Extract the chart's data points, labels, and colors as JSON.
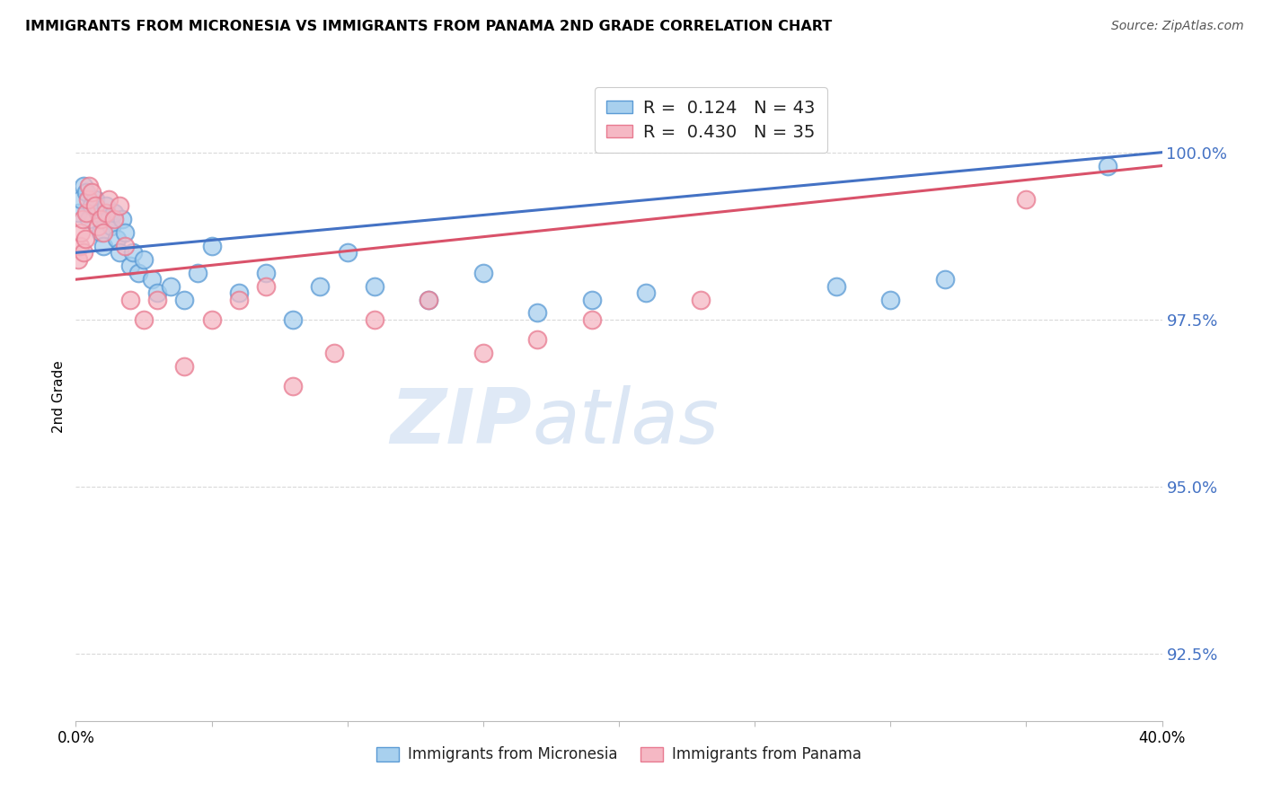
{
  "title": "IMMIGRANTS FROM MICRONESIA VS IMMIGRANTS FROM PANAMA 2ND GRADE CORRELATION CHART",
  "source": "Source: ZipAtlas.com",
  "ylabel": "2nd Grade",
  "y_ticks": [
    92.5,
    95.0,
    97.5,
    100.0
  ],
  "y_tick_labels": [
    "92.5%",
    "95.0%",
    "97.5%",
    "100.0%"
  ],
  "x_lim": [
    0.0,
    40.0
  ],
  "y_lim": [
    91.5,
    101.2
  ],
  "micronesia_x": [
    0.1,
    0.2,
    0.3,
    0.4,
    0.5,
    0.6,
    0.7,
    0.8,
    0.9,
    1.0,
    1.1,
    1.2,
    1.3,
    1.4,
    1.5,
    1.6,
    1.7,
    1.8,
    2.0,
    2.1,
    2.3,
    2.5,
    2.8,
    3.0,
    3.5,
    4.0,
    4.5,
    5.0,
    6.0,
    7.0,
    8.0,
    9.0,
    10.0,
    11.0,
    13.0,
    15.0,
    17.0,
    19.0,
    21.0,
    28.0,
    30.0,
    32.0,
    38.0
  ],
  "micronesia_y": [
    99.1,
    99.3,
    99.5,
    99.4,
    99.0,
    99.2,
    99.3,
    99.1,
    98.8,
    98.6,
    99.2,
    99.0,
    98.9,
    99.1,
    98.7,
    98.5,
    99.0,
    98.8,
    98.3,
    98.5,
    98.2,
    98.4,
    98.1,
    97.9,
    98.0,
    97.8,
    98.2,
    98.6,
    97.9,
    98.2,
    97.5,
    98.0,
    98.5,
    98.0,
    97.8,
    98.2,
    97.6,
    97.8,
    97.9,
    98.0,
    97.8,
    98.1,
    99.8
  ],
  "panama_x": [
    0.1,
    0.15,
    0.2,
    0.25,
    0.3,
    0.35,
    0.4,
    0.45,
    0.5,
    0.6,
    0.7,
    0.8,
    0.9,
    1.0,
    1.1,
    1.2,
    1.4,
    1.6,
    1.8,
    2.0,
    2.5,
    3.0,
    4.0,
    5.0,
    6.0,
    7.0,
    8.0,
    9.5,
    11.0,
    13.0,
    15.0,
    17.0,
    19.0,
    23.0,
    35.0
  ],
  "panama_y": [
    98.4,
    98.6,
    98.8,
    99.0,
    98.5,
    98.7,
    99.1,
    99.3,
    99.5,
    99.4,
    99.2,
    98.9,
    99.0,
    98.8,
    99.1,
    99.3,
    99.0,
    99.2,
    98.6,
    97.8,
    97.5,
    97.8,
    96.8,
    97.5,
    97.8,
    98.0,
    96.5,
    97.0,
    97.5,
    97.8,
    97.0,
    97.2,
    97.5,
    97.8,
    99.3
  ],
  "micronesia_color": "#a8d0ee",
  "panama_color": "#f5b8c4",
  "micronesia_edge_color": "#5b9bd5",
  "panama_edge_color": "#e87a90",
  "micronesia_line_color": "#4472c4",
  "panama_line_color": "#d9526a",
  "r_micronesia": 0.124,
  "n_micronesia": 43,
  "r_panama": 0.43,
  "n_panama": 35,
  "watermark_zip": "ZIP",
  "watermark_atlas": "atlas",
  "background_color": "#ffffff",
  "grid_color": "#d0d0d0",
  "tick_label_color": "#4472c4"
}
